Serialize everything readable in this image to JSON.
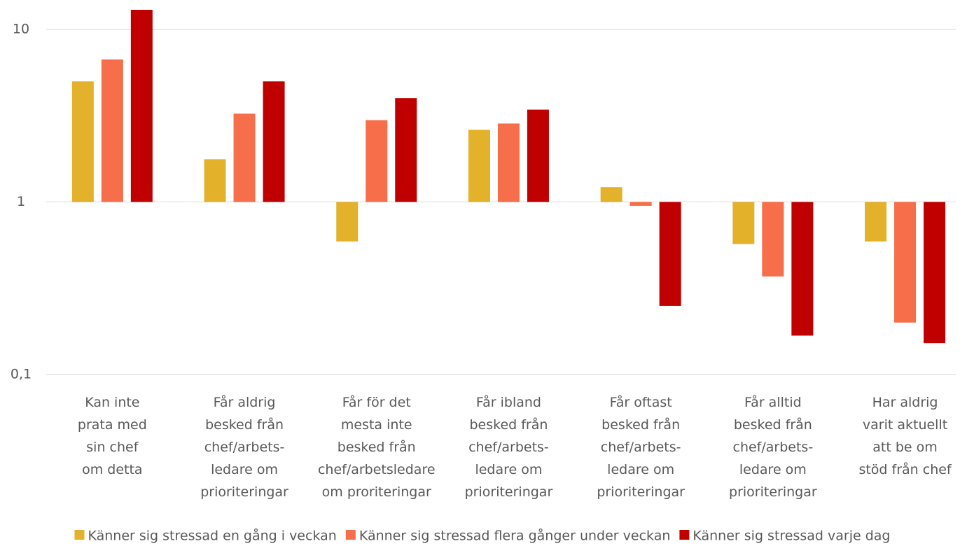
{
  "chart_data": {
    "type": "bar",
    "log_scale": true,
    "grid": true,
    "legend": "bottom",
    "categories": [
      "Kan inte\nprata med\nsin chef\nom detta",
      "Får aldrig\nbesked från\nchef/arbets-\nledare om\nprioriteringar",
      "Får för det\nmesta inte\nbesked från\nchef/arbetsledare\nom proriteringar",
      "Får ibland\nbesked från\nchef/arbets-\nledare om\nprioriteringar",
      "Får oftast\nbesked från\nchef/arbets-\nledare om\nprioriteringar",
      "Får alltid\nbesked från\nchef/arbets-\nledare om\nprioriteringar",
      "Har aldrig\nvarit aktuellt\natt be om\nstöd från chef"
    ],
    "series": [
      {
        "name": "Känner sig stressad en gång i veckan",
        "color": "#e3b12a",
        "values": [
          5.0,
          1.77,
          0.59,
          2.62,
          1.22,
          0.57,
          0.59
        ]
      },
      {
        "name": "Känner sig stressad flera gånger under veckan",
        "color": "#f76e4a",
        "values": [
          6.7,
          3.25,
          2.98,
          2.85,
          0.95,
          0.37,
          0.2
        ]
      },
      {
        "name": "Känner sig stressad varje dag",
        "color": "#c00000",
        "values": [
          13,
          5.0,
          4.0,
          3.43,
          0.25,
          0.168,
          0.152
        ]
      }
    ],
    "ylim": [
      0.1,
      13
    ],
    "yticks": [
      {
        "value": 0.1,
        "label": "0,1"
      },
      1,
      10
    ]
  }
}
